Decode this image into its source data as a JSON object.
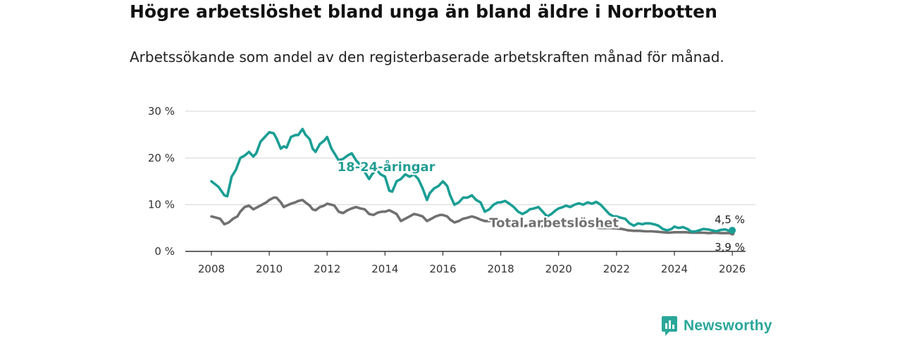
{
  "title": "Högre arbetslöshet bland unga än bland äldre i Norrbotten",
  "subtitle": "Arbetssökande som andel av den registerbaserade arbetskraften månad för månad.",
  "logo": {
    "text": "Newsworthy",
    "icon": "bar-chart-speech-bubble-icon"
  },
  "colors": {
    "youth": "#1a9e94",
    "total": "#707070",
    "grid": "#d6d6d6",
    "axis": "#333333"
  },
  "chart_data": {
    "type": "line",
    "title": "Högre arbetslöshet bland unga än bland äldre i Norrbotten",
    "xlabel": "",
    "ylabel": "",
    "xlim": [
      2007.1,
      2026.8
    ],
    "ylim": [
      0,
      30
    ],
    "x_ticks": [
      2008,
      2010,
      2012,
      2014,
      2016,
      2018,
      2020,
      2022,
      2024,
      2026
    ],
    "x_tick_labels": [
      "2008",
      "2010",
      "2012",
      "2014",
      "2016",
      "2018",
      "2020",
      "2022",
      "2024",
      "2026"
    ],
    "y_ticks": [
      0,
      10,
      20,
      30
    ],
    "y_tick_labels": [
      "0 %",
      "10 %",
      "20 %",
      "30 %"
    ],
    "grid": true,
    "series": [
      {
        "name": "18-24-åringar",
        "label": "18-24-åringar",
        "color": "#1a9e94",
        "end_label": "4,5 %",
        "x": [
          2008.0,
          2008.25,
          2008.45,
          2008.55,
          2008.7,
          2008.85,
          2009.0,
          2009.15,
          2009.3,
          2009.45,
          2009.55,
          2009.7,
          2009.85,
          2010.0,
          2010.15,
          2010.25,
          2010.4,
          2010.5,
          2010.6,
          2010.75,
          2010.9,
          2011.0,
          2011.15,
          2011.25,
          2011.4,
          2011.5,
          2011.6,
          2011.75,
          2011.9,
          2012.0,
          2012.15,
          2012.25,
          2012.4,
          2012.55,
          2012.7,
          2012.85,
          2013.0,
          2013.15,
          2013.3,
          2013.45,
          2013.55,
          2013.7,
          2013.85,
          2014.0,
          2014.15,
          2014.25,
          2014.4,
          2014.55,
          2014.7,
          2014.85,
          2015.0,
          2015.15,
          2015.3,
          2015.45,
          2015.55,
          2015.7,
          2015.85,
          2016.0,
          2016.15,
          2016.25,
          2016.4,
          2016.55,
          2016.7,
          2016.85,
          2017.0,
          2017.15,
          2017.3,
          2017.45,
          2017.6,
          2017.75,
          2017.9,
          2018.0,
          2018.15,
          2018.3,
          2018.45,
          2018.6,
          2018.75,
          2018.9,
          2019.0,
          2019.15,
          2019.3,
          2019.45,
          2019.6,
          2019.75,
          2019.9,
          2020.0,
          2020.15,
          2020.25,
          2020.4,
          2020.55,
          2020.7,
          2020.85,
          2021.0,
          2021.15,
          2021.3,
          2021.45,
          2021.6,
          2021.75,
          2021.9,
          2022.0,
          2022.15,
          2022.3,
          2022.45,
          2022.6,
          2022.75,
          2022.9,
          2023.0,
          2023.15,
          2023.3,
          2023.45,
          2023.6,
          2023.75,
          2023.9,
          2024.0,
          2024.15,
          2024.3,
          2024.45,
          2024.6,
          2024.75,
          2024.9,
          2025.0,
          2025.15,
          2025.3,
          2025.45,
          2025.6,
          2025.75,
          2025.9,
          2026.0
        ],
        "y": [
          15.0,
          13.8,
          12.0,
          11.8,
          16.0,
          17.5,
          20.0,
          20.5,
          21.3,
          20.3,
          21.0,
          23.5,
          24.5,
          25.5,
          25.3,
          24.2,
          22.0,
          22.5,
          22.2,
          24.5,
          24.9,
          24.9,
          26.2,
          25.0,
          24.0,
          22.0,
          21.3,
          23.0,
          23.7,
          24.5,
          22.0,
          21.0,
          19.5,
          19.8,
          20.5,
          21.0,
          19.5,
          18.5,
          17.0,
          15.5,
          16.5,
          17.5,
          16.5,
          16.0,
          13.0,
          12.8,
          15.0,
          15.5,
          16.5,
          16.0,
          16.5,
          15.5,
          13.5,
          11.0,
          12.5,
          13.5,
          14.0,
          15.0,
          14.0,
          12.0,
          10.0,
          10.5,
          11.5,
          11.5,
          12.0,
          11.0,
          10.5,
          8.5,
          9.0,
          10.0,
          10.5,
          10.5,
          10.8,
          10.2,
          9.5,
          8.5,
          8.0,
          8.5,
          9.0,
          9.2,
          9.5,
          8.5,
          7.5,
          8.0,
          8.8,
          9.2,
          9.5,
          9.8,
          9.5,
          10.0,
          10.3,
          10.0,
          10.5,
          10.2,
          10.6,
          10.0,
          9.0,
          8.0,
          7.5,
          7.5,
          7.2,
          7.0,
          6.0,
          5.5,
          6.0,
          5.8,
          6.0,
          6.0,
          5.8,
          5.5,
          4.8,
          4.5,
          4.8,
          5.3,
          5.0,
          5.2,
          4.8,
          4.2,
          4.3,
          4.6,
          4.8,
          4.7,
          4.5,
          4.3,
          4.6,
          4.7,
          4.4,
          4.5
        ]
      },
      {
        "name": "Total arbetslöshet",
        "label": "Total arbetslöshet",
        "color": "#707070",
        "end_label": "3,9 %",
        "x": [
          2008.0,
          2008.3,
          2008.45,
          2008.6,
          2008.75,
          2008.9,
          2009.0,
          2009.15,
          2009.3,
          2009.45,
          2009.6,
          2009.75,
          2009.9,
          2010.0,
          2010.15,
          2010.25,
          2010.4,
          2010.5,
          2010.6,
          2010.75,
          2010.9,
          2011.0,
          2011.15,
          2011.25,
          2011.4,
          2011.5,
          2011.6,
          2011.75,
          2011.9,
          2012.0,
          2012.15,
          2012.25,
          2012.4,
          2012.55,
          2012.7,
          2012.85,
          2013.0,
          2013.15,
          2013.3,
          2013.45,
          2013.6,
          2013.75,
          2013.9,
          2014.0,
          2014.15,
          2014.25,
          2014.4,
          2014.55,
          2014.7,
          2014.85,
          2015.0,
          2015.15,
          2015.3,
          2015.45,
          2015.6,
          2015.75,
          2015.9,
          2016.0,
          2016.15,
          2016.25,
          2016.4,
          2016.55,
          2016.7,
          2016.85,
          2017.0,
          2017.15,
          2017.3,
          2017.45,
          2017.6,
          2017.75,
          2017.9,
          2018.0,
          2018.2,
          2018.4,
          2018.6,
          2018.8,
          2019.0,
          2019.2,
          2019.4,
          2019.6,
          2019.8,
          2020.0,
          2020.2,
          2020.4,
          2020.6,
          2020.8,
          2021.0,
          2021.2,
          2021.4,
          2021.6,
          2021.8,
          2022.0,
          2022.2,
          2022.4,
          2022.6,
          2022.8,
          2023.0,
          2023.2,
          2023.4,
          2023.6,
          2023.8,
          2024.0,
          2024.2,
          2024.4,
          2024.6,
          2024.8,
          2025.0,
          2025.2,
          2025.4,
          2025.6,
          2025.8,
          2026.0
        ],
        "y": [
          7.5,
          7.0,
          5.8,
          6.2,
          7.0,
          7.5,
          8.5,
          9.5,
          9.8,
          9.0,
          9.5,
          10.0,
          10.5,
          11.0,
          11.5,
          11.5,
          10.5,
          9.5,
          9.8,
          10.2,
          10.5,
          10.8,
          11.0,
          10.5,
          9.8,
          9.0,
          8.8,
          9.5,
          9.8,
          10.2,
          10.0,
          9.8,
          8.5,
          8.2,
          8.8,
          9.2,
          9.5,
          9.2,
          9.0,
          8.0,
          7.8,
          8.3,
          8.5,
          8.5,
          8.8,
          8.5,
          8.0,
          6.5,
          7.0,
          7.5,
          8.0,
          7.8,
          7.5,
          6.5,
          7.0,
          7.5,
          7.8,
          7.8,
          7.5,
          6.8,
          6.2,
          6.5,
          7.0,
          7.2,
          7.5,
          7.2,
          6.8,
          6.5,
          6.5,
          6.8,
          6.8,
          6.5,
          6.3,
          6.0,
          5.5,
          5.4,
          5.6,
          5.8,
          5.3,
          5.5,
          5.8,
          5.8,
          5.6,
          5.5,
          5.6,
          5.6,
          5.4,
          5.3,
          5.0,
          5.0,
          5.0,
          4.9,
          4.8,
          4.5,
          4.4,
          4.4,
          4.3,
          4.3,
          4.2,
          4.1,
          4.0,
          4.1,
          4.1,
          4.1,
          4.0,
          4.0,
          4.0,
          3.9,
          4.0,
          3.9,
          3.9,
          3.9
        ]
      }
    ]
  }
}
